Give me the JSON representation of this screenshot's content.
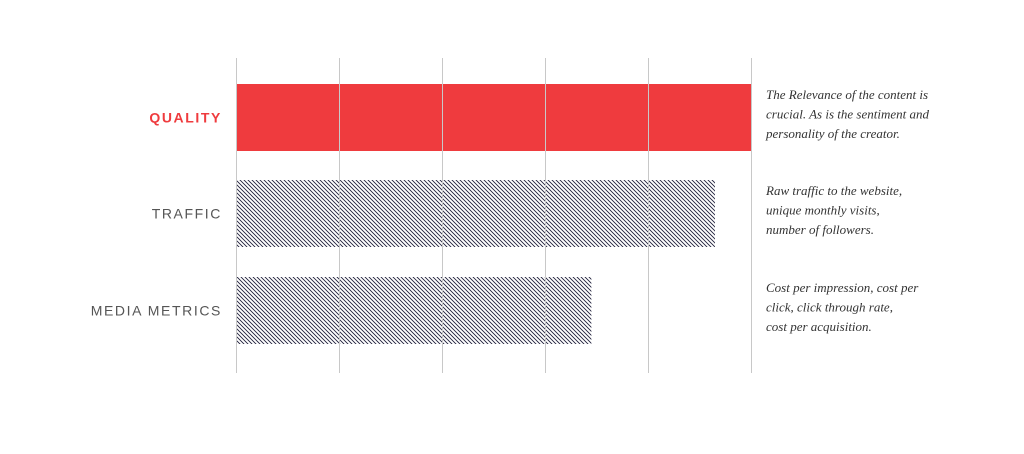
{
  "colors": {
    "highlight": "#ef3b3e",
    "pattern": "#1f1f3a",
    "grid": "#c8c8c8",
    "label": "#555555",
    "text": "#333333"
  },
  "chart_data": {
    "type": "bar",
    "orientation": "horizontal",
    "title": "",
    "xlabel": "",
    "ylabel": "",
    "xlim": [
      0,
      5
    ],
    "grid": true,
    "categories": [
      "QUALITY",
      "TRAFFIC",
      "MEDIA METRICS"
    ],
    "values": [
      5,
      4.65,
      3.45
    ],
    "highlighted": "QUALITY",
    "descriptions": [
      [
        "The Relevance of the content is",
        "crucial.  As is the sentiment and",
        "personality of the creator."
      ],
      [
        "Raw traffic to the website,",
        "unique monthly visits,",
        "number of followers."
      ],
      [
        "Cost per impression, cost per",
        "click, click through rate,",
        "cost per acquisition."
      ]
    ]
  }
}
